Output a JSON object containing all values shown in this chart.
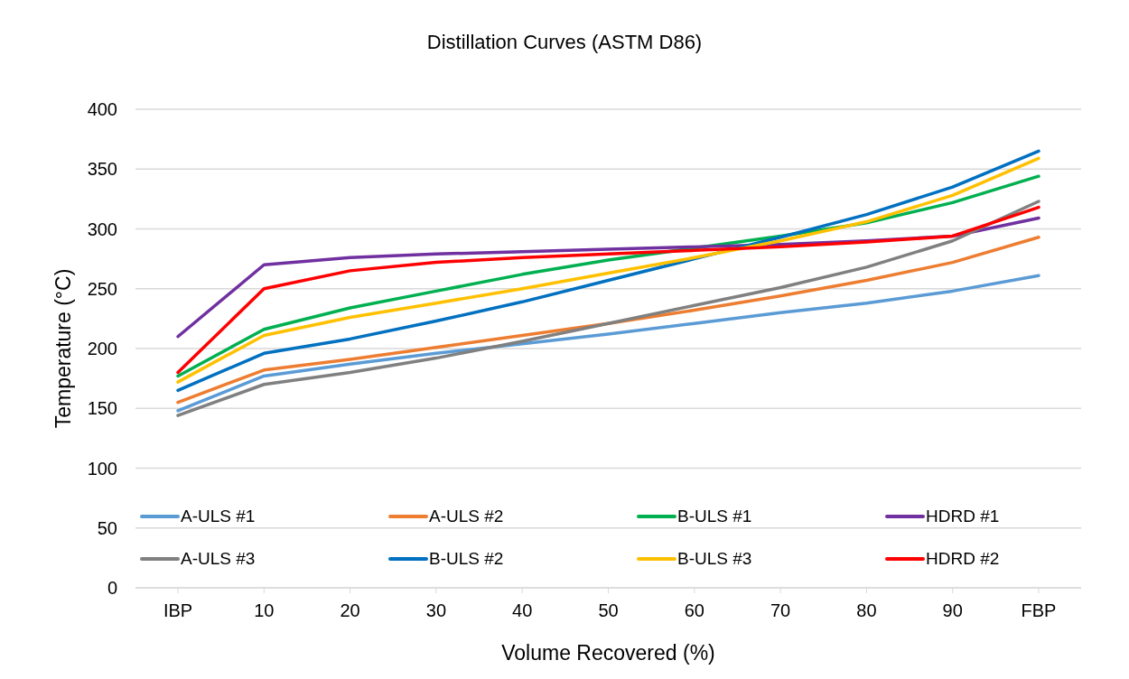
{
  "chart_data": {
    "type": "line",
    "title": "Distillation Curves (ASTM D86)",
    "xlabel": "Volume Recovered (%)",
    "ylabel": "Temperature (°C)",
    "categories": [
      "IBP",
      "10",
      "20",
      "30",
      "40",
      "50",
      "60",
      "70",
      "80",
      "90",
      "FBP"
    ],
    "series": [
      {
        "name": "A-ULS #1",
        "color": "#5b9bd5",
        "values": [
          148,
          177,
          187,
          196,
          204,
          212,
          221,
          230,
          238,
          248,
          261
        ]
      },
      {
        "name": "A-ULS #2",
        "color": "#ed7d31",
        "values": [
          155,
          182,
          191,
          201,
          211,
          221,
          232,
          244,
          257,
          272,
          293
        ]
      },
      {
        "name": "B-ULS #1",
        "color": "#00b050",
        "values": [
          177,
          216,
          234,
          248,
          262,
          274,
          284,
          294,
          305,
          322,
          344
        ]
      },
      {
        "name": "HDRD #1",
        "color": "#7030a0",
        "values": [
          210,
          270,
          276,
          279,
          281,
          283,
          285,
          287,
          290,
          294,
          309
        ]
      },
      {
        "name": "A-ULS #3",
        "color": "#808080",
        "values": [
          144,
          170,
          180,
          192,
          206,
          221,
          236,
          251,
          268,
          290,
          323
        ]
      },
      {
        "name": "B-ULS #2",
        "color": "#0070c0",
        "values": [
          165,
          196,
          208,
          223,
          239,
          257,
          275,
          293,
          312,
          335,
          365
        ]
      },
      {
        "name": "B-ULS #3",
        "color": "#ffc000",
        "values": [
          172,
          211,
          226,
          238,
          250,
          263,
          276,
          290,
          306,
          328,
          359
        ]
      },
      {
        "name": "HDRD #2",
        "color": "#ff0000",
        "values": [
          180,
          250,
          265,
          272,
          276,
          279,
          282,
          285,
          289,
          294,
          318
        ]
      }
    ],
    "ylim": [
      0,
      400
    ],
    "yticks": [
      0,
      50,
      100,
      150,
      200,
      250,
      300,
      350,
      400
    ],
    "grid": "y",
    "legend": "bottom",
    "marker": "none",
    "line_style": "solid"
  }
}
